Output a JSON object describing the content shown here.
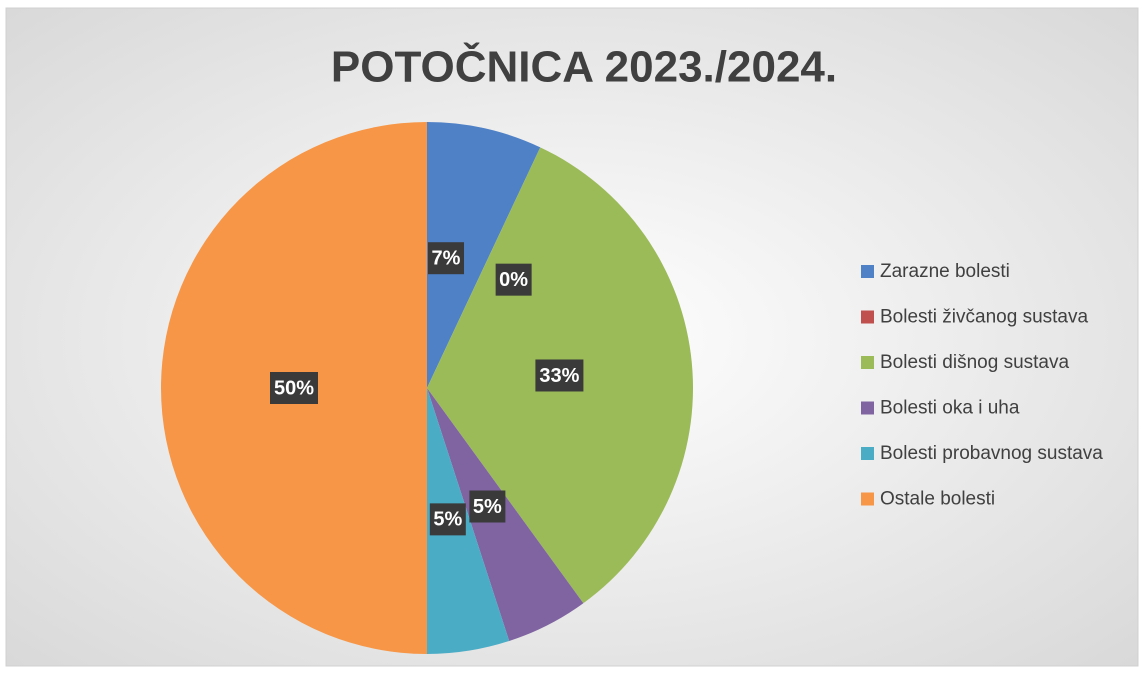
{
  "chart_data": {
    "type": "pie",
    "title": "POTOČNICA 2023./2024.",
    "categories": [
      "Zarazne bolesti",
      "Bolesti živčanog sustava",
      "Bolesti dišnog sustava",
      "Bolesti oka i uha",
      "Bolesti probavnog sustava",
      "Ostale bolesti"
    ],
    "values": [
      7,
      0,
      33,
      5,
      5,
      50
    ],
    "value_labels": [
      "7%",
      "0%",
      "33%",
      "5%",
      "5%",
      "50%"
    ],
    "colors": [
      "#4f81c7",
      "#c0504d",
      "#9bbb59",
      "#8064a2",
      "#4bacc6",
      "#f79646"
    ],
    "legend": "right"
  }
}
